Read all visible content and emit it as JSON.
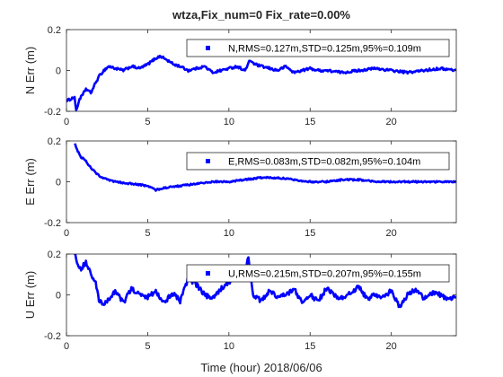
{
  "figure": {
    "title": "wtza,Fix_num=0 Fix_rate=0.00%",
    "xlabel": "Time (hour)  2018/06/06"
  },
  "chart_data": [
    {
      "type": "line",
      "ylabel": "N Err (m)",
      "legend": "N,RMS=0.127m,STD=0.125m,95%=0.109m",
      "legend_position": "top-right",
      "xlim": [
        0,
        24
      ],
      "ylim": [
        -0.2,
        0.2
      ],
      "xticks": [
        0,
        5,
        10,
        15,
        20
      ],
      "yticks": [
        -0.2,
        0,
        0.2
      ],
      "color": "#0000ff",
      "grid": false,
      "noise": 0.006,
      "x": [
        0.0,
        0.5,
        0.6,
        0.7,
        0.8,
        1.0,
        1.2,
        1.5,
        1.8,
        2.0,
        2.3,
        2.6,
        3.0,
        3.5,
        4.0,
        4.5,
        5.0,
        5.5,
        5.8,
        6.2,
        6.6,
        7.0,
        7.5,
        8.0,
        8.5,
        9.0,
        9.5,
        10.0,
        10.5,
        11.0,
        11.3,
        11.6,
        12.0,
        12.5,
        13.0,
        13.5,
        14.0,
        14.5,
        15.0,
        15.5,
        16.0,
        17.0,
        18.0,
        19.0,
        20.0,
        21.0,
        22.0,
        23.0,
        24.0
      ],
      "y": [
        -0.15,
        -0.13,
        -0.2,
        -0.17,
        -0.14,
        -0.12,
        -0.09,
        -0.11,
        -0.06,
        -0.03,
        0.0,
        0.02,
        0.01,
        0.0,
        0.02,
        0.01,
        0.03,
        0.06,
        0.07,
        0.05,
        0.03,
        0.02,
        0.0,
        0.01,
        0.02,
        -0.01,
        0.0,
        0.01,
        0.02,
        0.0,
        0.05,
        0.03,
        0.02,
        0.01,
        0.0,
        0.02,
        -0.01,
        0.0,
        0.01,
        0.0,
        0.0,
        -0.01,
        0.0,
        0.01,
        0.0,
        -0.01,
        0.0,
        0.01,
        0.0
      ]
    },
    {
      "type": "line",
      "ylabel": "E Err (m)",
      "legend": "E,RMS=0.083m,STD=0.082m,95%=0.104m",
      "legend_position": "top-right",
      "xlim": [
        0,
        24
      ],
      "ylim": [
        -0.2,
        0.2
      ],
      "xticks": [
        0,
        5,
        10,
        15,
        20
      ],
      "yticks": [
        -0.2,
        0,
        0.2
      ],
      "color": "#0000ff",
      "grid": false,
      "noise": 0.004,
      "x": [
        0.5,
        0.7,
        0.9,
        1.1,
        1.3,
        1.6,
        2.0,
        2.5,
        3.0,
        4.0,
        5.0,
        5.5,
        6.0,
        7.0,
        8.0,
        9.0,
        10.0,
        11.0,
        12.0,
        13.0,
        14.0,
        15.0,
        16.0,
        17.0,
        18.0,
        19.0,
        20.0,
        21.0,
        22.0,
        23.0,
        24.0
      ],
      "y": [
        0.19,
        0.15,
        0.12,
        0.11,
        0.09,
        0.06,
        0.03,
        0.01,
        0.0,
        -0.01,
        -0.02,
        -0.04,
        -0.03,
        -0.02,
        -0.01,
        0.0,
        0.0,
        0.01,
        0.02,
        0.02,
        0.01,
        0.0,
        0.0,
        0.01,
        0.01,
        0.0,
        0.0,
        0.0,
        0.0,
        0.0,
        0.0
      ]
    },
    {
      "type": "line",
      "ylabel": "U Err (m)",
      "legend": "U,RMS=0.215m,STD=0.207m,95%=0.155m",
      "legend_position": "top-right",
      "xlim": [
        0,
        24
      ],
      "ylim": [
        -0.2,
        0.2
      ],
      "xticks": [
        0,
        5,
        10,
        15,
        20
      ],
      "yticks": [
        -0.2,
        0,
        0.2
      ],
      "color": "#0000ff",
      "grid": false,
      "noise": 0.012,
      "x": [
        0.5,
        0.7,
        0.9,
        1.2,
        1.5,
        1.8,
        2.0,
        2.3,
        2.6,
        3.0,
        3.5,
        4.0,
        4.5,
        5.0,
        5.5,
        6.0,
        6.5,
        7.0,
        7.5,
        8.0,
        8.5,
        9.0,
        9.5,
        10.0,
        10.5,
        11.0,
        11.2,
        11.5,
        12.0,
        12.5,
        13.0,
        13.5,
        14.0,
        14.5,
        15.0,
        15.5,
        16.0,
        16.5,
        17.0,
        17.5,
        18.0,
        18.5,
        19.0,
        19.5,
        20.0,
        20.5,
        21.0,
        21.5,
        22.0,
        22.5,
        23.0,
        23.5,
        24.0
      ],
      "y": [
        0.2,
        0.15,
        0.13,
        0.16,
        0.1,
        0.06,
        -0.03,
        -0.05,
        -0.02,
        0.02,
        -0.04,
        0.03,
        0.0,
        -0.01,
        0.02,
        -0.04,
        0.01,
        -0.03,
        0.08,
        0.05,
        0.0,
        -0.02,
        0.03,
        0.06,
        0.12,
        0.1,
        0.19,
        0.0,
        -0.03,
        0.02,
        -0.01,
        0.0,
        0.03,
        -0.04,
        0.0,
        -0.03,
        0.03,
        0.0,
        -0.02,
        0.01,
        0.04,
        -0.02,
        0.0,
        -0.01,
        0.02,
        -0.06,
        0.0,
        0.03,
        -0.02,
        0.01,
        0.0,
        -0.02,
        -0.01
      ]
    }
  ]
}
